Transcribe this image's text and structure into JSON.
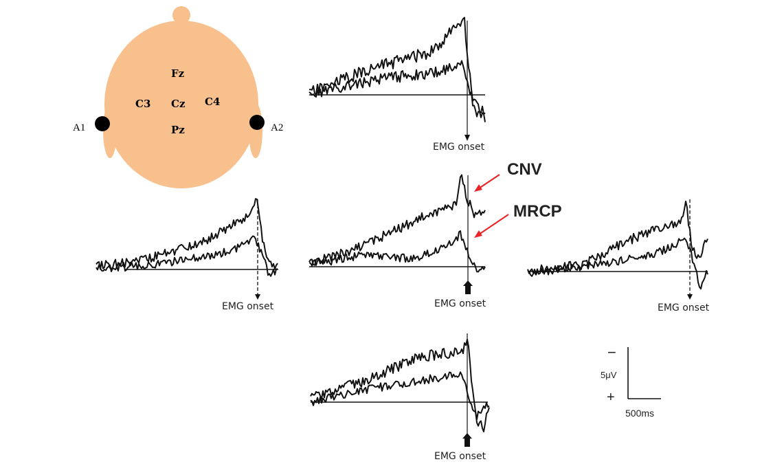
{
  "head": {
    "skin_color": "#f8c08c",
    "electrodes": [
      "Fz",
      "C3",
      "Cz",
      "C4",
      "Pz"
    ],
    "ears": [
      "A1",
      "A2"
    ]
  },
  "panels": [
    {
      "id": "fz",
      "onset_label": "EMG onset",
      "marker": "solid"
    },
    {
      "id": "c3",
      "onset_label": "EMG onset",
      "marker": "dashed"
    },
    {
      "id": "cz",
      "onset_label": "EMG onset",
      "marker": "solid"
    },
    {
      "id": "c4",
      "onset_label": "EMG onset",
      "marker": "dashed"
    },
    {
      "id": "pz",
      "onset_label": "EMG onset",
      "marker": "solid"
    }
  ],
  "annotations": {
    "cnv": "CNV",
    "mrcp": "MRCP",
    "arrow_color": "#e8262a"
  },
  "scale_bar": {
    "minus": "−",
    "plus": "+",
    "amplitude": "5μV",
    "time": "500ms"
  }
}
